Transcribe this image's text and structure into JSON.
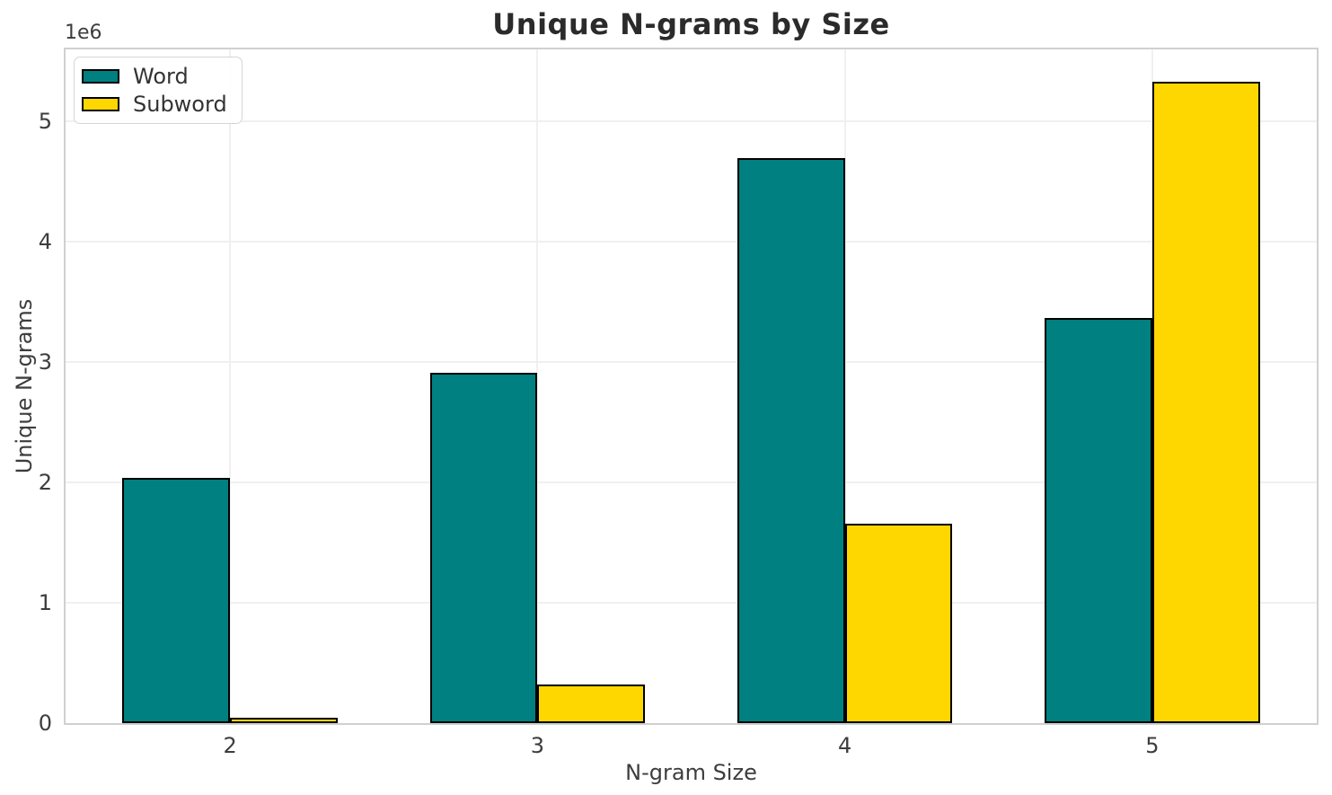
{
  "chart_data": {
    "type": "bar",
    "title": "Unique N-grams by Size",
    "xlabel": "N-gram Size",
    "ylabel": "Unique N-grams",
    "offset_text": "1e6",
    "categories": [
      2,
      3,
      4,
      5
    ],
    "series": [
      {
        "name": "Word",
        "color": "#008080",
        "values": [
          2040000,
          2910000,
          4700000,
          3370000
        ]
      },
      {
        "name": "Subword",
        "color": "#ffd700",
        "values": [
          45000,
          320000,
          1660000,
          5330000
        ]
      }
    ],
    "bar_width": 0.35,
    "edge_color": "#000000",
    "xlim": [
      1.465,
      5.535
    ],
    "ylim": [
      0,
      5600000
    ],
    "yticks": [
      0,
      1,
      2,
      3,
      4,
      5
    ],
    "ytick_scale": 1000000,
    "grid": true,
    "legend_position": "upper left"
  },
  "style": {
    "grid_color": "#f0f0f0",
    "spine_color": "#d0d0d0",
    "tick_text_color": "#3d3d3d",
    "title_color": "#2b2b2b",
    "background": "#ffffff"
  }
}
